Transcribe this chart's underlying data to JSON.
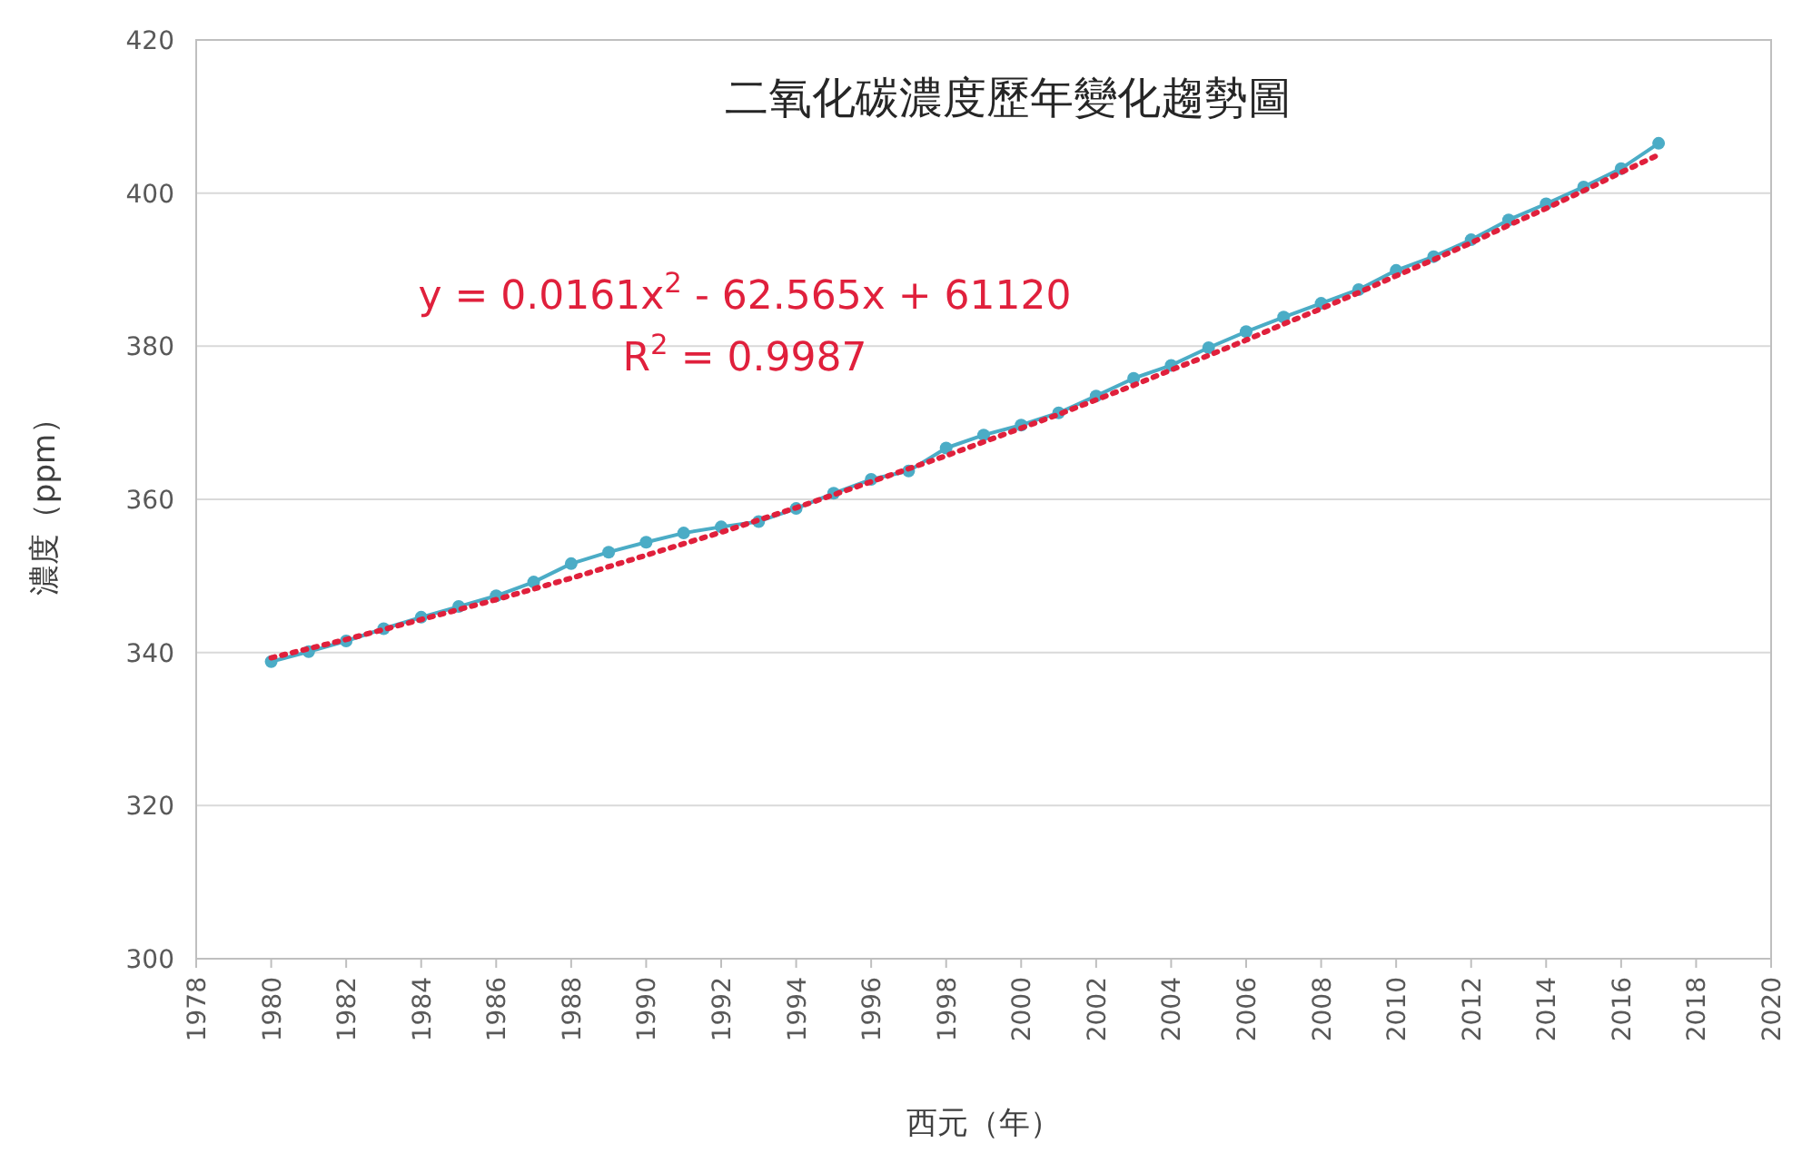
{
  "chart_data": {
    "type": "line",
    "title": "二氧化碳濃度歷年變化趨勢圖",
    "xlabel": "西元（年）",
    "ylabel": "濃度（ppm）",
    "annotations": [
      "y = 0.0161x$^{2}$ - 62.565x + 61120",
      "R$^{2}$ = 0.9987"
    ],
    "xlim": [
      1978,
      2020
    ],
    "xticks": [
      1978,
      1980,
      1982,
      1984,
      1986,
      1988,
      1990,
      1992,
      1994,
      1996,
      1998,
      2000,
      2002,
      2004,
      2006,
      2008,
      2010,
      2012,
      2014,
      2016,
      2018,
      2020
    ],
    "ylim": [
      300,
      420
    ],
    "yticks": [
      300,
      320,
      340,
      360,
      380,
      400,
      420
    ],
    "grid": "y",
    "series": [
      {
        "color": "#4bacc6",
        "marker": "circle",
        "line_style": "solid",
        "x": [
          1980,
          1981,
          1982,
          1983,
          1984,
          1985,
          1986,
          1987,
          1988,
          1989,
          1990,
          1991,
          1992,
          1993,
          1994,
          1995,
          1996,
          1997,
          1998,
          1999,
          2000,
          2001,
          2002,
          2003,
          2004,
          2005,
          2006,
          2007,
          2008,
          2009,
          2010,
          2011,
          2012,
          2013,
          2014,
          2015,
          2016,
          2017
        ],
        "values": [
          338.8,
          340.1,
          341.5,
          343.1,
          344.6,
          346.0,
          347.4,
          349.2,
          351.6,
          353.1,
          354.4,
          355.6,
          356.4,
          357.1,
          358.8,
          360.8,
          362.6,
          363.7,
          366.7,
          368.4,
          369.7,
          371.3,
          373.5,
          375.8,
          377.5,
          379.8,
          381.9,
          383.8,
          385.6,
          387.4,
          389.9,
          391.7,
          393.9,
          396.5,
          398.6,
          400.8,
          403.2,
          406.5
        ]
      },
      {
        "color": "#e0203c",
        "marker": "none",
        "line_style": "dotted",
        "x": [
          1980,
          1981,
          1982,
          1983,
          1984,
          1985,
          1986,
          1987,
          1988,
          1989,
          1990,
          1991,
          1992,
          1993,
          1994,
          1995,
          1996,
          1997,
          1998,
          1999,
          2000,
          2001,
          2002,
          2003,
          2004,
          2005,
          2006,
          2007,
          2008,
          2009,
          2010,
          2011,
          2012,
          2013,
          2014,
          2015,
          2016,
          2017
        ],
        "values": [
          339.3,
          340.5,
          341.7,
          343.0,
          344.3,
          345.6,
          346.9,
          348.3,
          349.7,
          351.2,
          352.7,
          354.2,
          355.7,
          357.3,
          358.9,
          360.6,
          362.3,
          364.0,
          365.7,
          367.5,
          369.3,
          371.1,
          373.0,
          374.9,
          376.9,
          378.8,
          380.8,
          382.9,
          384.9,
          387.0,
          389.2,
          391.3,
          393.5,
          395.8,
          398.0,
          400.3,
          402.7,
          405.0
        ]
      }
    ]
  }
}
